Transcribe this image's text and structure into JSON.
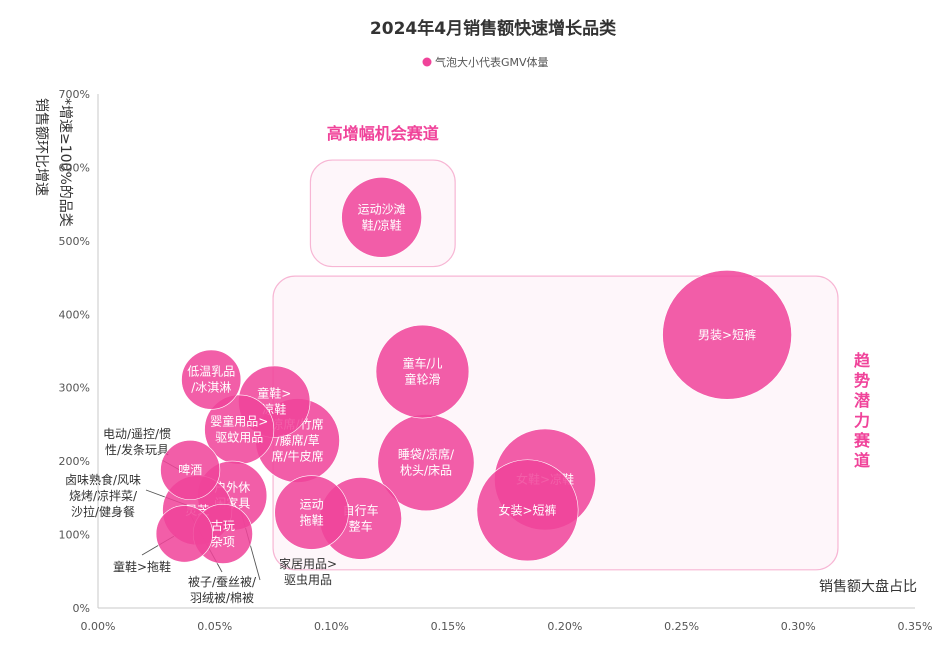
{
  "chart_data": {
    "type": "scatter",
    "title": "2024年4月销售额快速增长品类",
    "legend": {
      "label": "气泡大小代表GMV体量",
      "color": "#f0439a",
      "placement": "top-center"
    },
    "xlabel": "销售额大盘占比",
    "ylabel": [
      "销售额环比增速",
      "*增速≥100%的品类"
    ],
    "xlim": [
      0,
      0.35
    ],
    "ylim": [
      0,
      700
    ],
    "x_ticks": [
      "0.00%",
      "0.05%",
      "0.10%",
      "0.15%",
      "0.20%",
      "0.25%",
      "0.30%",
      "0.35%"
    ],
    "y_ticks": [
      "0%",
      "100%",
      "200%",
      "300%",
      "400%",
      "500%",
      "600%",
      "700%"
    ],
    "x_tick_values": [
      0,
      0.05,
      0.1,
      0.15,
      0.2,
      0.25,
      0.3,
      0.35
    ],
    "y_tick_values": [
      0,
      100,
      200,
      300,
      400,
      500,
      600,
      700
    ],
    "grid": false,
    "bubble_color": "#f0439a",
    "zones": [
      {
        "label": "高增幅机会赛道",
        "x_range": [
          0.091,
          0.153
        ],
        "y_range": [
          465,
          610
        ],
        "orientation": "horizontal"
      },
      {
        "label": "趋势潜力赛道",
        "x_range": [
          0.075,
          0.317
        ],
        "y_range": [
          52,
          452
        ],
        "orientation": "vertical"
      }
    ],
    "points": [
      {
        "label": [
          "运动沙滩",
          "鞋/凉鞋"
        ],
        "x": 0.1215,
        "y": 532,
        "size": 1.0,
        "label_pos": "inside"
      },
      {
        "label": [
          "男装>短裤"
        ],
        "x": 0.2695,
        "y": 372,
        "size": 2.6,
        "label_pos": "inside"
      },
      {
        "label": [
          "童车/儿",
          "童轮滑"
        ],
        "x": 0.139,
        "y": 322,
        "size": 1.35,
        "label_pos": "inside"
      },
      {
        "label": [
          "睡袋/凉席/",
          "枕头/床品"
        ],
        "x": 0.1405,
        "y": 198,
        "size": 1.45,
        "label_pos": "inside"
      },
      {
        "label": [
          "女鞋>凉鞋"
        ],
        "x": 0.1915,
        "y": 175,
        "size": 1.6,
        "label_pos": "inside"
      },
      {
        "label": [
          "女装>短裤"
        ],
        "x": 0.184,
        "y": 133,
        "size": 1.6,
        "label_pos": "inside"
      },
      {
        "label": [
          "运动",
          "拖鞋"
        ],
        "x": 0.0915,
        "y": 130,
        "size": 0.85,
        "label_pos": "inside"
      },
      {
        "label": [
          "自行车",
          "整车"
        ],
        "x": 0.1125,
        "y": 122,
        "size": 1.05,
        "label_pos": "inside"
      },
      {
        "label": [
          "童鞋>",
          "凉鞋"
        ],
        "x": 0.0755,
        "y": 281,
        "size": 0.8,
        "label_pos": "inside"
      },
      {
        "label": [
          "凉席/竹席",
          "/藤席/草",
          "席/牛皮席"
        ],
        "x": 0.0855,
        "y": 228,
        "size": 1.1,
        "label_pos": "inside"
      },
      {
        "label": [
          "低温乳品",
          "/冰淇淋"
        ],
        "x": 0.0485,
        "y": 311,
        "size": 0.55,
        "label_pos": "inside"
      },
      {
        "label": [
          "婴童用品>",
          "驱蚊用品"
        ],
        "x": 0.0605,
        "y": 243,
        "size": 0.75,
        "label_pos": "inside"
      },
      {
        "label": [
          "啤酒"
        ],
        "x": 0.0395,
        "y": 188,
        "size": 0.55,
        "label_pos": "inside"
      },
      {
        "label": [
          "户外休",
          "闲家具"
        ],
        "x": 0.0575,
        "y": 153,
        "size": 0.75,
        "label_pos": "inside"
      },
      {
        "label": [
          "灵芝"
        ],
        "x": 0.0425,
        "y": 133,
        "size": 0.75,
        "label_pos": "inside"
      },
      {
        "label": [
          "古玩",
          "杂项"
        ],
        "x": 0.0535,
        "y": 101,
        "size": 0.55,
        "label_pos": "inside"
      },
      {
        "label": [
          "童鞋>拖鞋"
        ],
        "x": 0.037,
        "y": 101,
        "size": 0.5,
        "label_pos": "callout"
      },
      {
        "label": [
          "电动/遥控/惯",
          "性/发条玩具"
        ],
        "x": 0.0375,
        "y": 174,
        "size": 0,
        "label_pos": "callout"
      },
      {
        "label": [
          "卤味熟食/风味",
          "烧烤/凉拌菜/",
          "沙拉/健身餐"
        ],
        "x": 0.0365,
        "y": 130,
        "size": 0,
        "label_pos": "callout"
      },
      {
        "label": [
          "被子/蚕丝被/",
          "羽绒被/棉被"
        ],
        "x": 0.046,
        "y": 111,
        "size": 0,
        "label_pos": "callout"
      },
      {
        "label": [
          "家居用品>",
          "驱虫用品"
        ],
        "x": 0.0665,
        "y": 144,
        "size": 0,
        "label_pos": "callout"
      }
    ]
  }
}
